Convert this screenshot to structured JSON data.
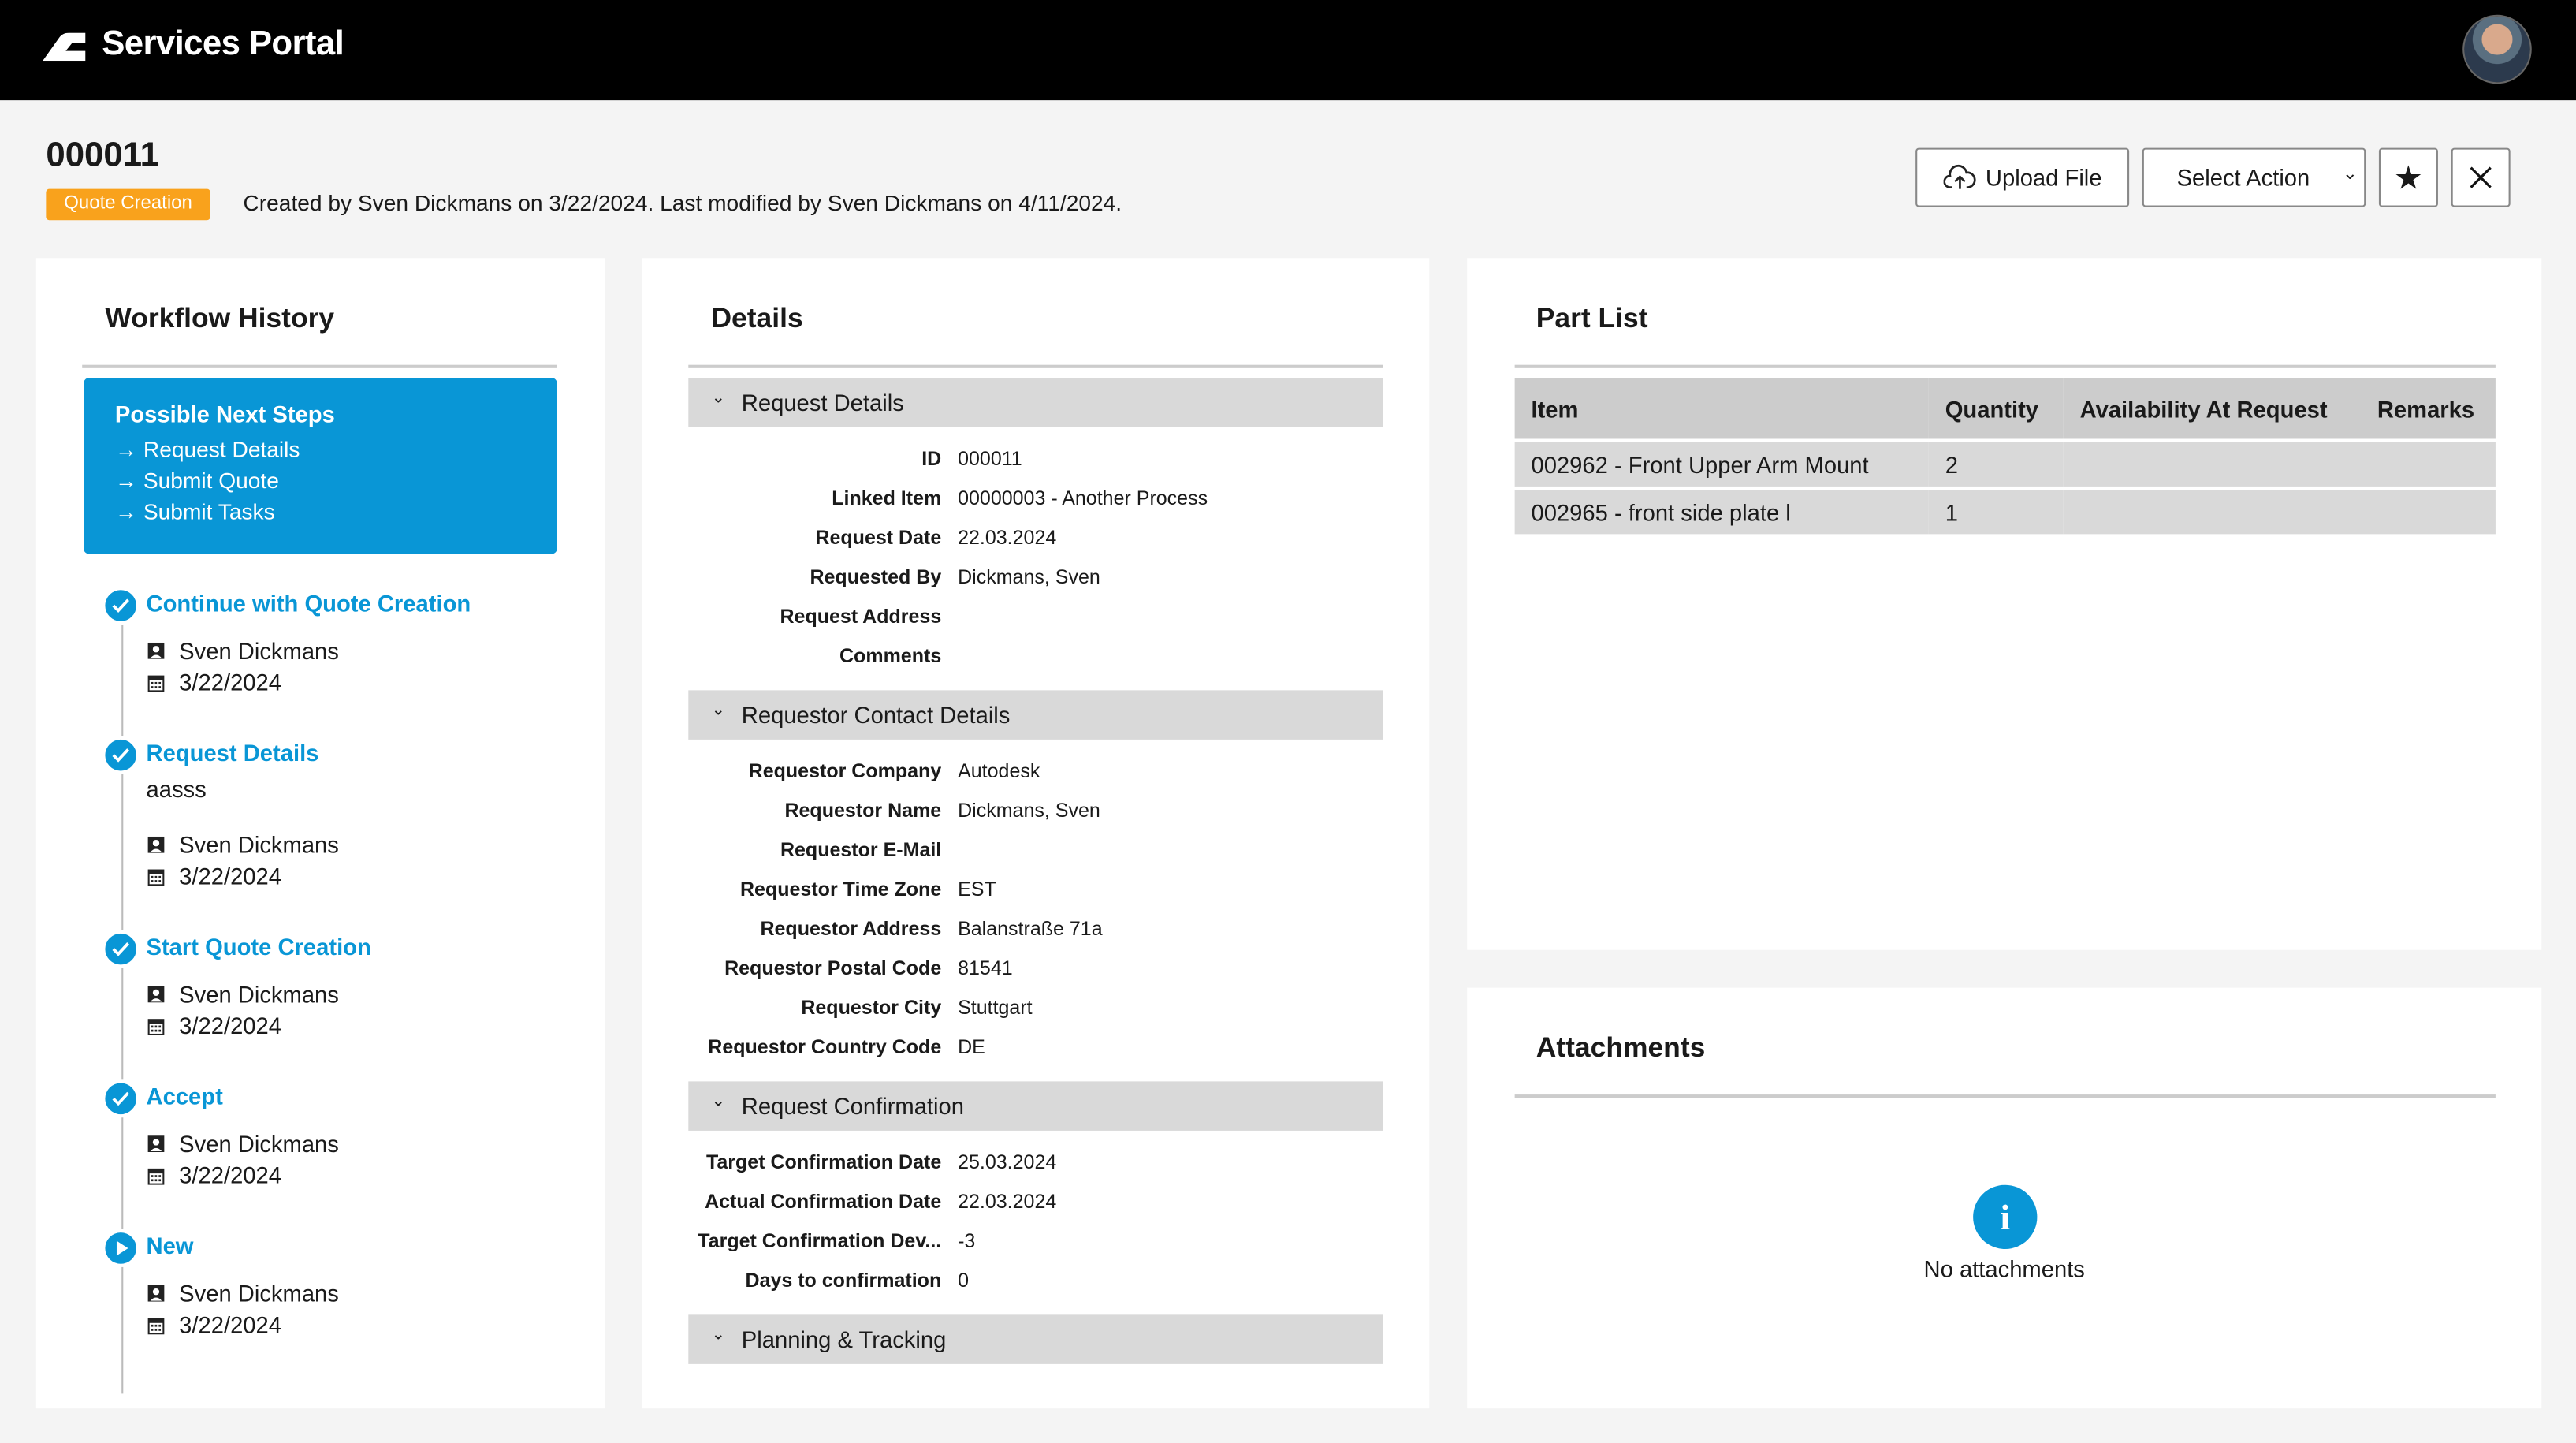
{
  "app": {
    "title": "Services Portal"
  },
  "record": {
    "id": "000011",
    "status": "Quote Creation",
    "status_color": "#f9a21c",
    "meta": "Created by Sven Dickmans on 3/22/2024. Last modified by Sven Dickmans on 4/11/2024."
  },
  "toolbar": {
    "upload_label": "Upload File",
    "select_action_label": "Select Action"
  },
  "workflow": {
    "title": "Workflow History",
    "next_steps_title": "Possible Next Steps",
    "next_steps": [
      "Request Details",
      "Submit Quote",
      "Submit Tasks"
    ],
    "items": [
      {
        "title": "Continue with Quote Creation",
        "state": "done",
        "note": "",
        "user": "Sven Dickmans",
        "date": "3/22/2024"
      },
      {
        "title": "Request Details",
        "state": "done",
        "note": "aasss",
        "user": "Sven Dickmans",
        "date": "3/22/2024"
      },
      {
        "title": "Start Quote Creation",
        "state": "done",
        "note": "",
        "user": "Sven Dickmans",
        "date": "3/22/2024"
      },
      {
        "title": "Accept",
        "state": "done",
        "note": "",
        "user": "Sven Dickmans",
        "date": "3/22/2024"
      },
      {
        "title": "New",
        "state": "current",
        "note": "",
        "user": "Sven Dickmans",
        "date": "3/22/2024"
      }
    ]
  },
  "details": {
    "title": "Details",
    "sections": [
      {
        "title": "Request Details",
        "fields": [
          [
            "ID",
            "000011"
          ],
          [
            "Linked Item",
            "00000003 - Another Process"
          ],
          [
            "Request Date",
            "22.03.2024"
          ],
          [
            "Requested By",
            "Dickmans, Sven"
          ],
          [
            "Request Address",
            ""
          ],
          [
            "Comments",
            ""
          ]
        ]
      },
      {
        "title": "Requestor Contact Details",
        "fields": [
          [
            "Requestor Company",
            "Autodesk"
          ],
          [
            "Requestor Name",
            "Dickmans, Sven"
          ],
          [
            "Requestor E-Mail",
            ""
          ],
          [
            "Requestor Time Zone",
            "EST"
          ],
          [
            "Requestor Address",
            "Balanstraße 71a"
          ],
          [
            "Requestor Postal Code",
            "81541"
          ],
          [
            "Requestor City",
            "Stuttgart"
          ],
          [
            "Requestor Country Code",
            "DE"
          ]
        ]
      },
      {
        "title": "Request Confirmation",
        "fields": [
          [
            "Target Confirmation Date",
            "25.03.2024"
          ],
          [
            "Actual Confirmation Date",
            "22.03.2024"
          ],
          [
            "Target Confirmation Dev...",
            "-3"
          ],
          [
            "Days to confirmation",
            "0"
          ]
        ]
      },
      {
        "title": "Planning & Tracking",
        "fields": []
      }
    ]
  },
  "parts": {
    "title": "Part List",
    "columns": [
      "Item",
      "Quantity",
      "Availability At Request",
      "Remarks"
    ],
    "rows": [
      [
        "002962 - Front Upper Arm Mount",
        "2",
        "",
        ""
      ],
      [
        "002965 - front side plate l",
        "1",
        "",
        ""
      ]
    ]
  },
  "attachments": {
    "title": "Attachments",
    "empty": "No attachments"
  },
  "colors": {
    "accent": "#0996d6",
    "header": "#000000"
  }
}
